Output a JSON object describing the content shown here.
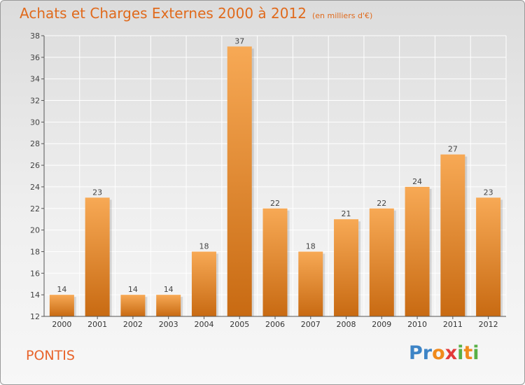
{
  "header": {
    "title": "Achats et Charges Externes 2000 à 2012",
    "unit": "(en milliers d'€)"
  },
  "footer": {
    "commune": "PONTIS",
    "brand_letters": [
      "P",
      "r",
      "o",
      "x",
      "i",
      "t",
      "i"
    ],
    "brand_colors": [
      "#3d84c6",
      "#3d84c6",
      "#f08a1c",
      "#e23a3a",
      "#58b046",
      "#f08a1c",
      "#58b046"
    ]
  },
  "colors": {
    "bar_top": "#f7a955",
    "bar_bottom": "#c86a12",
    "title": "#e06a1c"
  },
  "chart_data": {
    "type": "bar",
    "title": "Achats et Charges Externes 2000 à 2012",
    "xlabel": "",
    "ylabel": "",
    "categories": [
      "2000",
      "2001",
      "2002",
      "2003",
      "2004",
      "2005",
      "2006",
      "2007",
      "2008",
      "2009",
      "2010",
      "2011",
      "2012"
    ],
    "values": [
      14,
      23,
      14,
      14,
      18,
      37,
      22,
      18,
      21,
      22,
      24,
      27,
      23
    ],
    "ylim": [
      12,
      38
    ],
    "yticks": [
      12,
      14,
      16,
      18,
      20,
      22,
      24,
      26,
      28,
      30,
      32,
      34,
      36,
      38
    ],
    "grid": true
  }
}
